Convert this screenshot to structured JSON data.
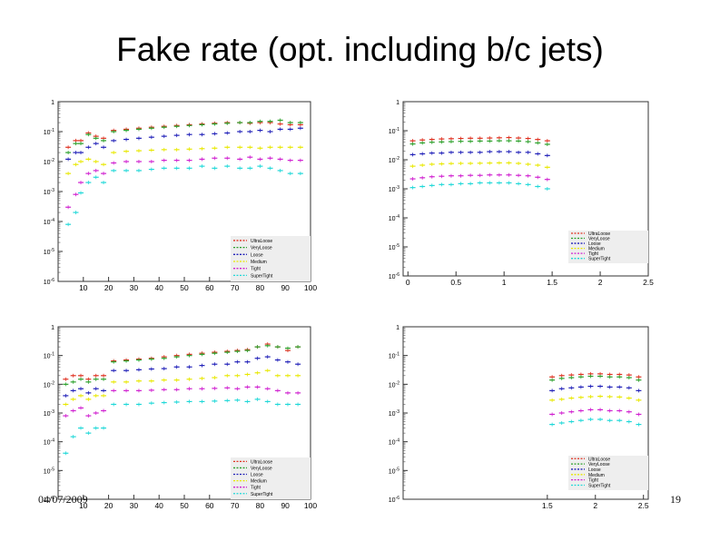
{
  "slide": {
    "title": "Fake rate (opt. including b/c jets)",
    "date": "04/07/2009",
    "page_number": "19"
  },
  "colors": {
    "UltraLoose": "#e03020",
    "VeryLoose": "#2aa02a",
    "Loose": "#1f1fb8",
    "Medium": "#e8e800",
    "Tight": "#d020d0",
    "SuperTight": "#20d8d8"
  },
  "chart_data": [
    {
      "type": "scatter",
      "title": "",
      "xlabel": "",
      "ylabel": "",
      "yscale": "log",
      "ylim": [
        1e-06,
        1
      ],
      "xlim": [
        0,
        100
      ],
      "x_ticks": [
        "10",
        "20",
        "30",
        "40",
        "50",
        "60",
        "70",
        "80",
        "90",
        "100"
      ],
      "x_tick_values": [
        10,
        20,
        30,
        40,
        50,
        60,
        70,
        80,
        90,
        100
      ],
      "y_ticks": [
        "1",
        "10^-1",
        "10^-2",
        "10^-3",
        "10^-4",
        "10^-5",
        "10^-6"
      ],
      "legend": [
        "UltraLoose",
        "VeryLoose",
        "Loose",
        "Medium",
        "Tight",
        "SuperTight"
      ],
      "legend_position": "bottom-right",
      "x": [
        4,
        7,
        9,
        12,
        15,
        18,
        22,
        27,
        32,
        37,
        42,
        47,
        52,
        57,
        62,
        67,
        72,
        76,
        80,
        84,
        88,
        92,
        96
      ],
      "series": [
        {
          "name": "UltraLoose",
          "values": [
            0.03,
            0.05,
            0.05,
            0.09,
            0.07,
            0.06,
            0.11,
            0.12,
            0.13,
            0.14,
            0.15,
            0.16,
            0.17,
            0.18,
            0.19,
            0.2,
            0.2,
            0.19,
            0.2,
            0.2,
            0.18,
            0.17,
            0.17
          ]
        },
        {
          "name": "VeryLoose",
          "values": [
            0.02,
            0.04,
            0.04,
            0.08,
            0.06,
            0.05,
            0.1,
            0.11,
            0.12,
            0.13,
            0.14,
            0.15,
            0.16,
            0.17,
            0.18,
            0.19,
            0.2,
            0.2,
            0.22,
            0.22,
            0.24,
            0.2,
            0.2
          ]
        },
        {
          "name": "Loose",
          "values": [
            0.012,
            0.02,
            0.02,
            0.03,
            0.04,
            0.03,
            0.05,
            0.055,
            0.06,
            0.065,
            0.07,
            0.075,
            0.08,
            0.08,
            0.085,
            0.09,
            0.1,
            0.1,
            0.11,
            0.1,
            0.12,
            0.12,
            0.13
          ]
        },
        {
          "name": "Medium",
          "values": [
            0.004,
            0.008,
            0.01,
            0.012,
            0.01,
            0.008,
            0.02,
            0.022,
            0.023,
            0.024,
            0.025,
            0.025,
            0.026,
            0.027,
            0.028,
            0.03,
            0.03,
            0.03,
            0.028,
            0.03,
            0.03,
            0.03,
            0.03
          ]
        },
        {
          "name": "Tight",
          "values": [
            0.0003,
            0.0008,
            0.002,
            0.004,
            0.005,
            0.004,
            0.009,
            0.01,
            0.01,
            0.01,
            0.011,
            0.011,
            0.011,
            0.012,
            0.013,
            0.013,
            0.012,
            0.014,
            0.012,
            0.013,
            0.012,
            0.011,
            0.011
          ]
        },
        {
          "name": "SuperTight",
          "values": [
            8e-05,
            0.0002,
            0.0009,
            0.002,
            0.003,
            0.002,
            0.005,
            0.005,
            0.005,
            0.0055,
            0.006,
            0.006,
            0.006,
            0.007,
            0.006,
            0.007,
            0.006,
            0.006,
            0.007,
            0.006,
            0.005,
            0.004,
            0.004
          ]
        }
      ]
    },
    {
      "type": "scatter",
      "title": "",
      "xlabel": "",
      "ylabel": "",
      "yscale": "log",
      "ylim": [
        1e-06,
        1
      ],
      "xlim": [
        -0.05,
        2.5
      ],
      "x_ticks": [
        "0",
        "0.5",
        "1",
        "1.5",
        "2",
        "2.5"
      ],
      "x_tick_values": [
        0,
        0.5,
        1,
        1.5,
        2,
        2.5
      ],
      "y_ticks": [
        "1",
        "10^-1",
        "10^-2",
        "10^-3",
        "10^-4",
        "10^-5",
        "10^-6"
      ],
      "legend": [
        "UltraLoose",
        "VeryLoose",
        "Loose",
        "Medium",
        "Tight",
        "SuperTight"
      ],
      "legend_position": "bottom-right",
      "x": [
        0.05,
        0.15,
        0.25,
        0.35,
        0.45,
        0.55,
        0.65,
        0.75,
        0.85,
        0.95,
        1.05,
        1.15,
        1.25,
        1.35,
        1.45
      ],
      "series": [
        {
          "name": "UltraLoose",
          "values": [
            0.045,
            0.048,
            0.05,
            0.052,
            0.053,
            0.054,
            0.055,
            0.055,
            0.056,
            0.057,
            0.058,
            0.056,
            0.054,
            0.05,
            0.045
          ]
        },
        {
          "name": "VeryLoose",
          "values": [
            0.035,
            0.038,
            0.04,
            0.041,
            0.042,
            0.043,
            0.043,
            0.044,
            0.044,
            0.045,
            0.045,
            0.044,
            0.042,
            0.038,
            0.034
          ]
        },
        {
          "name": "Loose",
          "values": [
            0.015,
            0.016,
            0.017,
            0.017,
            0.018,
            0.018,
            0.018,
            0.018,
            0.019,
            0.019,
            0.019,
            0.018,
            0.018,
            0.016,
            0.014
          ]
        },
        {
          "name": "Medium",
          "values": [
            0.006,
            0.0065,
            0.007,
            0.0072,
            0.0074,
            0.0075,
            0.0075,
            0.0076,
            0.0077,
            0.0078,
            0.0078,
            0.0075,
            0.007,
            0.0065,
            0.0055
          ]
        },
        {
          "name": "Tight",
          "values": [
            0.0022,
            0.0024,
            0.0026,
            0.0027,
            0.0028,
            0.0028,
            0.0029,
            0.0029,
            0.003,
            0.003,
            0.003,
            0.0029,
            0.0028,
            0.0025,
            0.0021
          ]
        },
        {
          "name": "SuperTight",
          "values": [
            0.0011,
            0.0012,
            0.0013,
            0.0014,
            0.0014,
            0.0015,
            0.0015,
            0.0016,
            0.0016,
            0.0016,
            0.0016,
            0.0015,
            0.0014,
            0.0012,
            0.001
          ]
        }
      ]
    },
    {
      "type": "scatter",
      "title": "",
      "xlabel": "",
      "ylabel": "",
      "yscale": "log",
      "ylim": [
        1e-06,
        1
      ],
      "xlim": [
        0,
        100
      ],
      "x_ticks": [
        "10",
        "20",
        "30",
        "40",
        "50",
        "60",
        "70",
        "80",
        "90",
        "100"
      ],
      "x_tick_values": [
        10,
        20,
        30,
        40,
        50,
        60,
        70,
        80,
        90,
        100
      ],
      "y_ticks": [
        "1",
        "10^-1",
        "10^-2",
        "10^-3",
        "10^-4",
        "10^-5",
        "10^-6"
      ],
      "legend": [
        "UltraLoose",
        "VeryLoose",
        "Loose",
        "Medium",
        "Tight",
        "SuperTight"
      ],
      "legend_position": "bottom-right",
      "x": [
        3,
        6,
        9,
        12,
        15,
        18,
        22,
        27,
        32,
        37,
        42,
        47,
        52,
        57,
        62,
        67,
        71,
        75,
        79,
        83,
        87,
        91,
        95
      ],
      "series": [
        {
          "name": "UltraLoose",
          "values": [
            0.015,
            0.02,
            0.02,
            0.015,
            0.02,
            0.02,
            0.065,
            0.07,
            0.075,
            0.08,
            0.09,
            0.1,
            0.11,
            0.12,
            0.13,
            0.14,
            0.15,
            0.16,
            0.2,
            0.25,
            0.2,
            0.15,
            0.2
          ]
        },
        {
          "name": "VeryLoose",
          "values": [
            0.01,
            0.012,
            0.015,
            0.012,
            0.015,
            0.015,
            0.06,
            0.065,
            0.07,
            0.075,
            0.08,
            0.09,
            0.1,
            0.11,
            0.12,
            0.13,
            0.14,
            0.15,
            0.2,
            0.22,
            0.2,
            0.18,
            0.2
          ]
        },
        {
          "name": "Loose",
          "values": [
            0.004,
            0.006,
            0.007,
            0.005,
            0.007,
            0.006,
            0.03,
            0.03,
            0.032,
            0.034,
            0.035,
            0.04,
            0.04,
            0.045,
            0.05,
            0.05,
            0.06,
            0.06,
            0.08,
            0.09,
            0.07,
            0.06,
            0.05
          ]
        },
        {
          "name": "Medium",
          "values": [
            0.002,
            0.003,
            0.004,
            0.003,
            0.004,
            0.004,
            0.012,
            0.012,
            0.013,
            0.013,
            0.014,
            0.014,
            0.015,
            0.016,
            0.017,
            0.02,
            0.02,
            0.022,
            0.025,
            0.03,
            0.02,
            0.02,
            0.02
          ]
        },
        {
          "name": "Tight",
          "values": [
            0.0008,
            0.0012,
            0.0015,
            0.0008,
            0.001,
            0.0012,
            0.006,
            0.006,
            0.006,
            0.0062,
            0.0065,
            0.0065,
            0.007,
            0.007,
            0.0072,
            0.0075,
            0.007,
            0.008,
            0.008,
            0.007,
            0.006,
            0.005,
            0.005
          ]
        },
        {
          "name": "SuperTight",
          "values": [
            4e-05,
            0.00015,
            0.0003,
            0.0002,
            0.0003,
            0.0003,
            0.002,
            0.002,
            0.002,
            0.0022,
            0.0023,
            0.0024,
            0.0025,
            0.0025,
            0.0026,
            0.0027,
            0.0028,
            0.0025,
            0.003,
            0.0025,
            0.002,
            0.002,
            0.002
          ]
        }
      ]
    },
    {
      "type": "scatter",
      "title": "",
      "xlabel": "",
      "ylabel": "",
      "yscale": "log",
      "ylim": [
        1e-06,
        1
      ],
      "y_ticks": [
        "1",
        "10^-1",
        "10^-2",
        "10^-3",
        "10^-4",
        "10^-5",
        "10^-6"
      ],
      "xlim": [
        0,
        2.55
      ],
      "x_ticks": [
        "1.5",
        "2",
        "2.5"
      ],
      "x_tick_values": [
        1.5,
        2,
        2.5
      ],
      "legend": [
        "UltraLoose",
        "VeryLoose",
        "Loose",
        "Medium",
        "Tight",
        "SuperTight"
      ],
      "legend_position": "bottom-right",
      "x": [
        1.55,
        1.65,
        1.75,
        1.85,
        1.95,
        2.05,
        2.15,
        2.25,
        2.35,
        2.45
      ],
      "series": [
        {
          "name": "UltraLoose",
          "values": [
            0.018,
            0.02,
            0.021,
            0.022,
            0.023,
            0.023,
            0.022,
            0.022,
            0.021,
            0.018
          ]
        },
        {
          "name": "VeryLoose",
          "values": [
            0.014,
            0.016,
            0.017,
            0.018,
            0.019,
            0.019,
            0.018,
            0.018,
            0.017,
            0.014
          ]
        },
        {
          "name": "Loose",
          "values": [
            0.006,
            0.007,
            0.0075,
            0.008,
            0.0085,
            0.0085,
            0.008,
            0.008,
            0.0075,
            0.006
          ]
        },
        {
          "name": "Medium",
          "values": [
            0.0028,
            0.003,
            0.0033,
            0.0035,
            0.0037,
            0.0038,
            0.0037,
            0.0036,
            0.0033,
            0.0028
          ]
        },
        {
          "name": "Tight",
          "values": [
            0.0009,
            0.001,
            0.0011,
            0.0012,
            0.0013,
            0.0013,
            0.0012,
            0.0012,
            0.0011,
            0.0009
          ]
        },
        {
          "name": "SuperTight",
          "values": [
            0.0004,
            0.00045,
            0.0005,
            0.00055,
            0.0006,
            0.0006,
            0.00055,
            0.00055,
            0.0005,
            0.0004
          ]
        }
      ]
    }
  ]
}
